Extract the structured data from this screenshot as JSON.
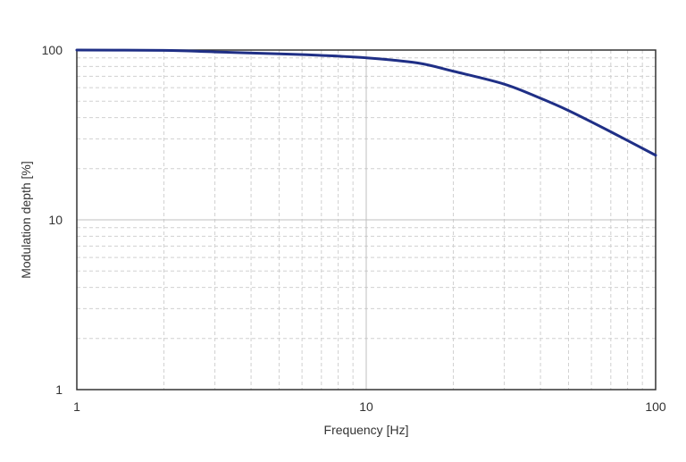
{
  "chart_data": {
    "type": "line",
    "title": "",
    "xlabel": "Frequency [Hz]",
    "ylabel": "Modulation depth [%]",
    "x_scale": "log",
    "y_scale": "log",
    "xlim": [
      1,
      100
    ],
    "ylim": [
      1,
      100
    ],
    "x_ticks": [
      "1",
      "10",
      "100"
    ],
    "y_ticks": [
      "1",
      "10",
      "100"
    ],
    "grid": true,
    "legend": "none",
    "colors": {
      "series": "#1f2f86",
      "grid_major": "#bfbfbf",
      "grid_minor": "#d0d0d0",
      "axis": "#333333"
    },
    "series": [
      {
        "x": [
          1,
          2,
          3,
          5,
          7,
          10,
          15,
          20,
          30,
          40,
          50,
          70,
          100
        ],
        "y": [
          100,
          99.5,
          97.5,
          95,
          93,
          90,
          84,
          75,
          63,
          52,
          44,
          33,
          24
        ]
      }
    ]
  }
}
